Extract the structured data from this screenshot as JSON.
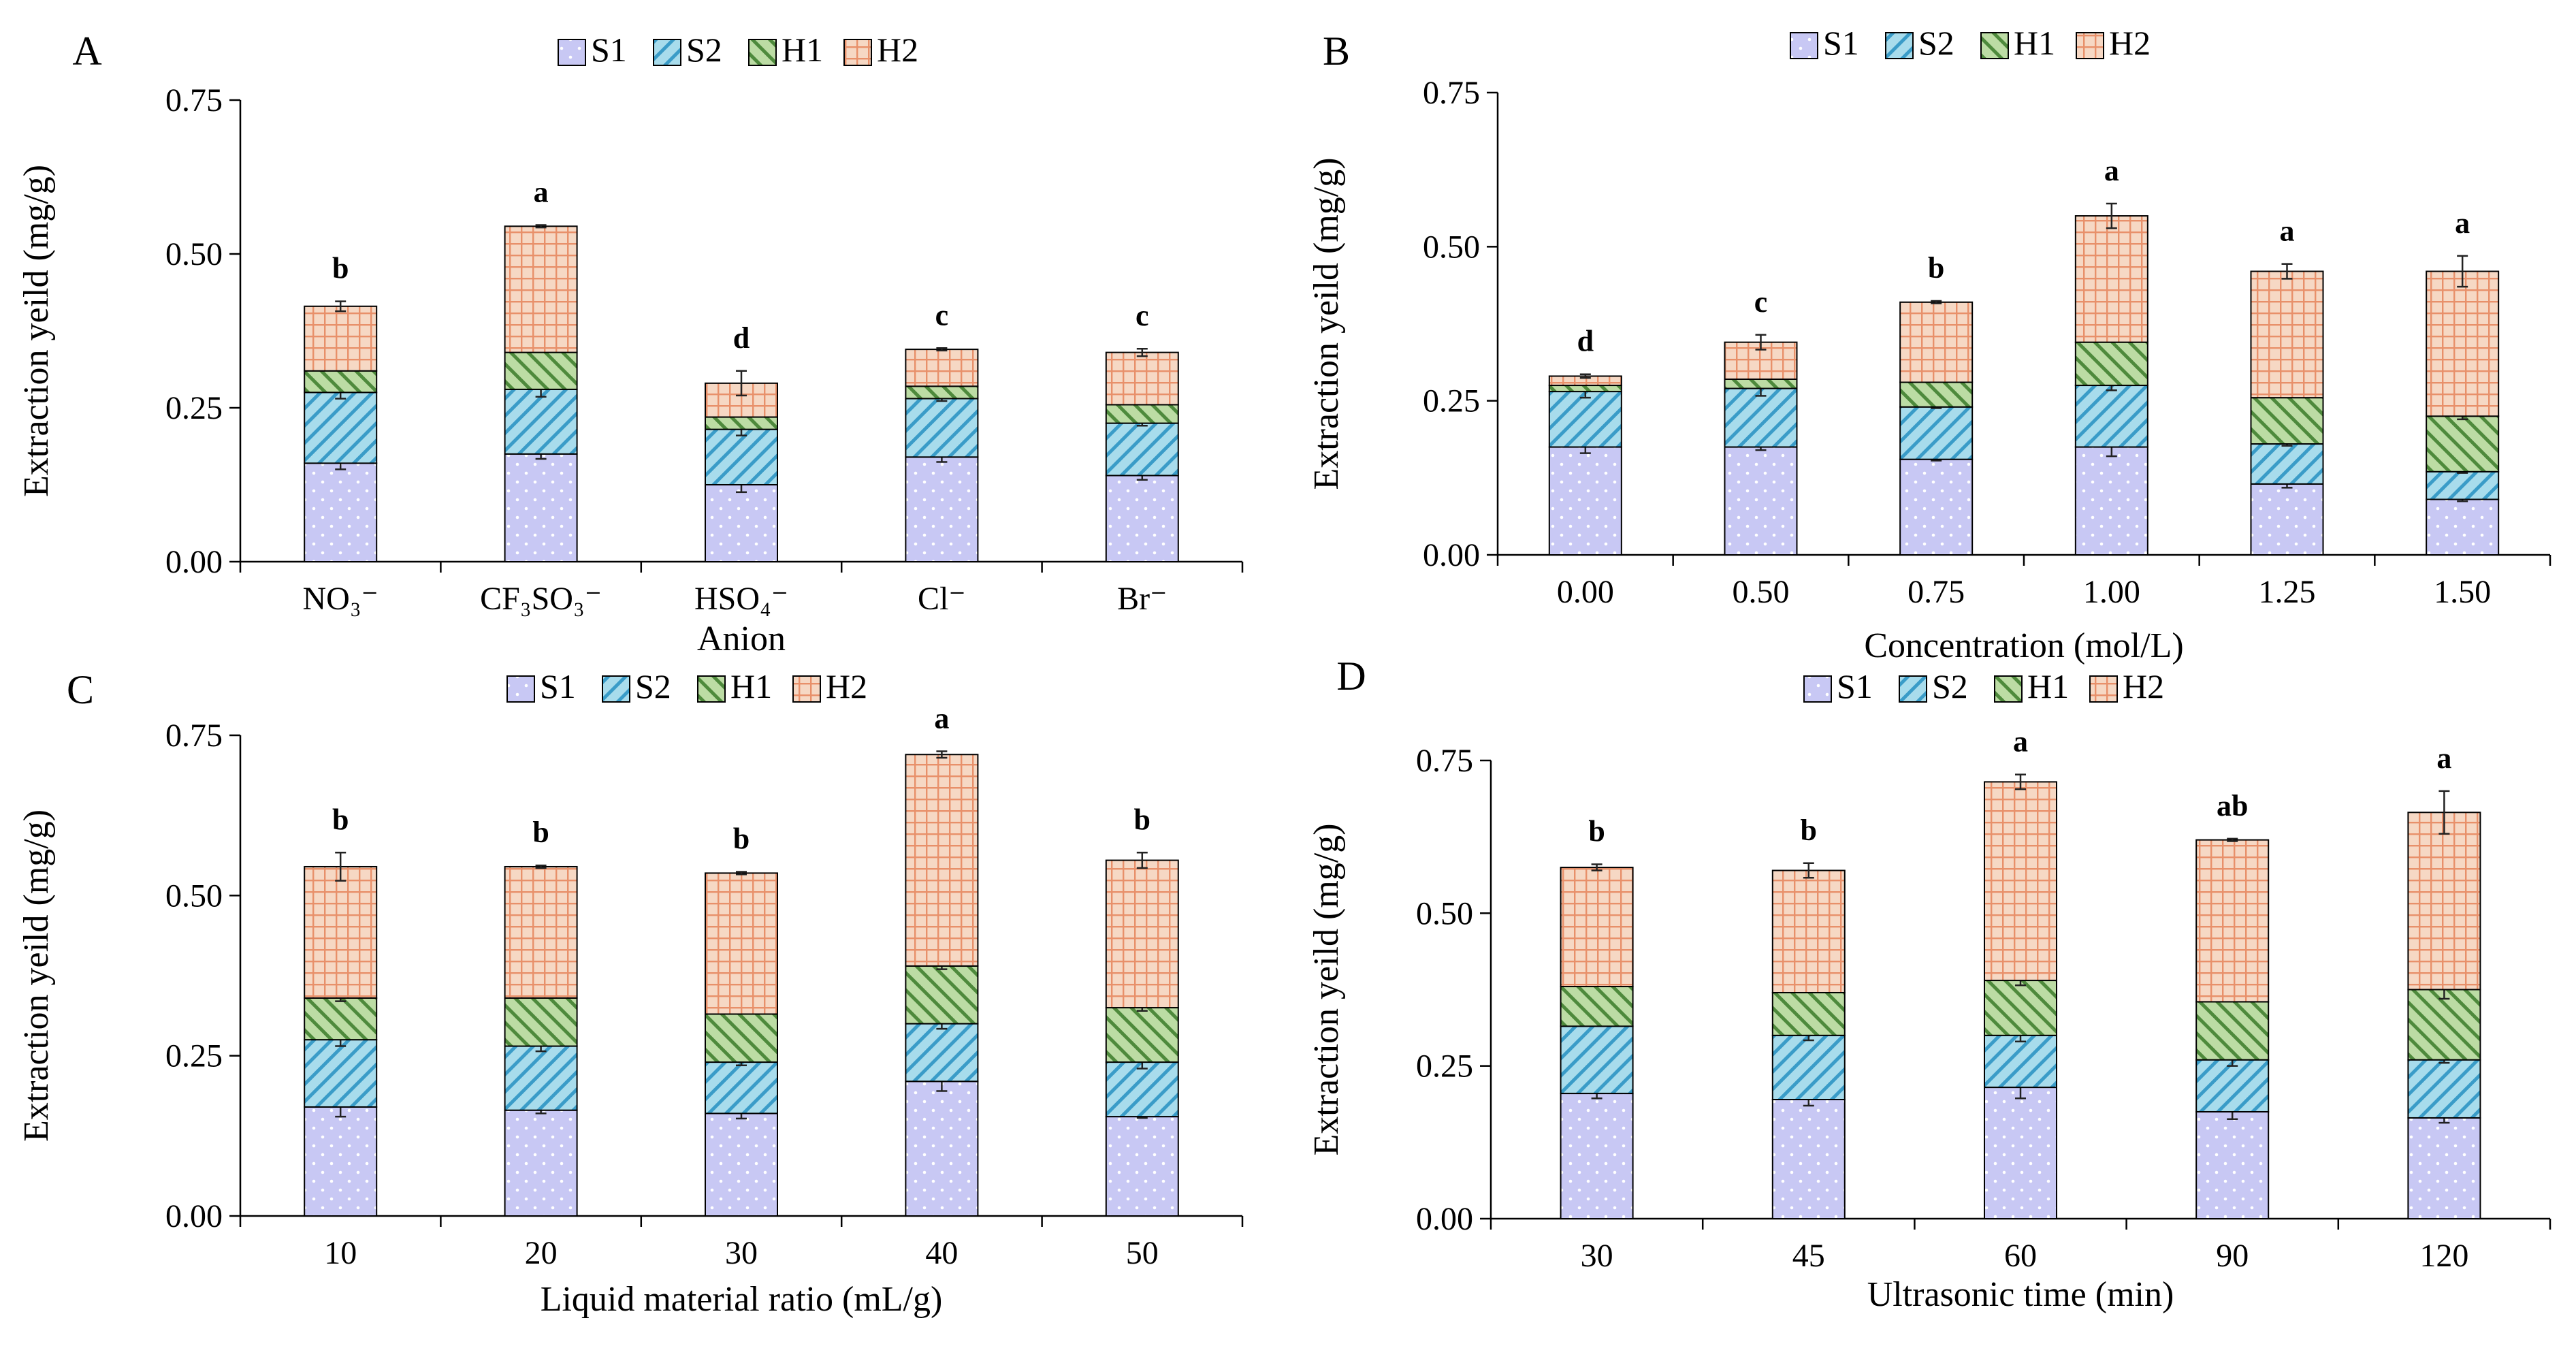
{
  "colors": {
    "S1": "#c8c8f4",
    "S2": "#a8dcec",
    "H1": "#bcdca4",
    "H2": "#f6d8c4",
    "S1_dots": "#ffffff",
    "S2_hatch": "#3a9cc8",
    "H1_hatch": "#4e8a3c",
    "H2_grid": "#e8906a"
  },
  "legend": [
    "S1",
    "S2",
    "H1",
    "H2"
  ],
  "chart_data": [
    {
      "panel": "A",
      "type": "stacked_bar",
      "xlabel": "Anion",
      "ylabel": "Extraction yeild (mg/g)",
      "ylim": [
        0,
        0.75
      ],
      "yticks": [
        "0.00",
        "0.25",
        "0.50",
        "0.75"
      ],
      "categories": [
        "NO₃⁻",
        "CF₃SO₃⁻",
        "HSO₄⁻",
        "Cl⁻",
        "Br⁻"
      ],
      "series": [
        {
          "name": "S1",
          "values": [
            0.16,
            0.175,
            0.125,
            0.17,
            0.14
          ],
          "errors": [
            0.01,
            0.008,
            0.012,
            0.008,
            0.007
          ]
        },
        {
          "name": "S2",
          "values": [
            0.115,
            0.105,
            0.09,
            0.095,
            0.085
          ],
          "errors": [
            0.01,
            0.012,
            0.01,
            0.004,
            0.004
          ]
        },
        {
          "name": "H1",
          "values": [
            0.035,
            0.06,
            0.02,
            0.02,
            0.03
          ],
          "errors": [
            0,
            0,
            0,
            0,
            0
          ]
        },
        {
          "name": "H2",
          "values": [
            0.105,
            0.205,
            0.055,
            0.06,
            0.085
          ],
          "errors": [
            0.008,
            0.002,
            0.02,
            0.002,
            0.006
          ]
        }
      ],
      "significance": [
        "b",
        "a",
        "d",
        "c",
        "c"
      ]
    },
    {
      "panel": "B",
      "type": "stacked_bar",
      "xlabel": "Concentration (mol/L)",
      "ylabel": "Extraction yeild (mg/g)",
      "ylim": [
        0,
        0.75
      ],
      "yticks": [
        "0.00",
        "0.25",
        "0.50",
        "0.75"
      ],
      "categories": [
        "0.00",
        "0.50",
        "0.75",
        "1.00",
        "1.25",
        "1.50"
      ],
      "series": [
        {
          "name": "S1",
          "values": [
            0.175,
            0.175,
            0.155,
            0.175,
            0.115,
            0.09
          ],
          "errors": [
            0.01,
            0.005,
            0.002,
            0.015,
            0.006,
            0.003
          ]
        },
        {
          "name": "S2",
          "values": [
            0.09,
            0.095,
            0.085,
            0.1,
            0.065,
            0.045
          ],
          "errors": [
            0.01,
            0.012,
            0.002,
            0.008,
            0.003,
            0.002
          ]
        },
        {
          "name": "H1",
          "values": [
            0.01,
            0.015,
            0.04,
            0.07,
            0.075,
            0.09
          ],
          "errors": [
            0,
            0,
            0,
            0,
            0,
            0.005
          ]
        },
        {
          "name": "H2",
          "values": [
            0.015,
            0.06,
            0.13,
            0.205,
            0.205,
            0.235
          ],
          "errors": [
            0.003,
            0.012,
            0.002,
            0.02,
            0.012,
            0.025
          ]
        }
      ],
      "significance": [
        "d",
        "c",
        "b",
        "a",
        "a",
        "a"
      ]
    },
    {
      "panel": "C",
      "type": "stacked_bar",
      "xlabel": "Liquid material ratio (mL/g)",
      "ylabel": "Extraction yeild (mg/g)",
      "ylim": [
        0,
        0.75
      ],
      "yticks": [
        "0.00",
        "0.25",
        "0.50",
        "0.75"
      ],
      "categories": [
        "10",
        "20",
        "30",
        "40",
        "50"
      ],
      "series": [
        {
          "name": "S1",
          "values": [
            0.17,
            0.165,
            0.16,
            0.21,
            0.155
          ],
          "errors": [
            0.015,
            0.005,
            0.008,
            0.015,
            0.002
          ]
        },
        {
          "name": "S2",
          "values": [
            0.105,
            0.1,
            0.08,
            0.09,
            0.085
          ],
          "errors": [
            0.01,
            0.008,
            0.005,
            0.008,
            0.01
          ]
        },
        {
          "name": "H1",
          "values": [
            0.065,
            0.075,
            0.075,
            0.09,
            0.085
          ],
          "errors": [
            0.005,
            0,
            0,
            0.005,
            0.005
          ]
        },
        {
          "name": "H2",
          "values": [
            0.205,
            0.205,
            0.22,
            0.33,
            0.23
          ],
          "errors": [
            0.022,
            0.002,
            0.002,
            0.005,
            0.012
          ]
        }
      ],
      "significance": [
        "b",
        "b",
        "b",
        "a",
        "b"
      ]
    },
    {
      "panel": "D",
      "type": "stacked_bar",
      "xlabel": "Ultrasonic time (min)",
      "ylabel": "Extraction yeild (mg/g)",
      "ylim": [
        0,
        0.75
      ],
      "yticks": [
        "0.00",
        "0.25",
        "0.50",
        "0.75"
      ],
      "categories": [
        "30",
        "45",
        "60",
        "90",
        "120"
      ],
      "series": [
        {
          "name": "S1",
          "values": [
            0.205,
            0.195,
            0.215,
            0.175,
            0.165
          ],
          "errors": [
            0.008,
            0.01,
            0.018,
            0.012,
            0.008
          ]
        },
        {
          "name": "S2",
          "values": [
            0.11,
            0.105,
            0.085,
            0.085,
            0.095
          ],
          "errors": [
            0,
            0.008,
            0.01,
            0.01,
            0.005
          ]
        },
        {
          "name": "H1",
          "values": [
            0.065,
            0.07,
            0.09,
            0.095,
            0.115
          ],
          "errors": [
            0,
            0,
            0.008,
            0,
            0.015
          ]
        },
        {
          "name": "H2",
          "values": [
            0.195,
            0.2,
            0.325,
            0.265,
            0.29
          ],
          "errors": [
            0.005,
            0.012,
            0.012,
            0.002,
            0.035
          ]
        }
      ],
      "significance": [
        "b",
        "b",
        "a",
        "ab",
        "a"
      ]
    }
  ]
}
